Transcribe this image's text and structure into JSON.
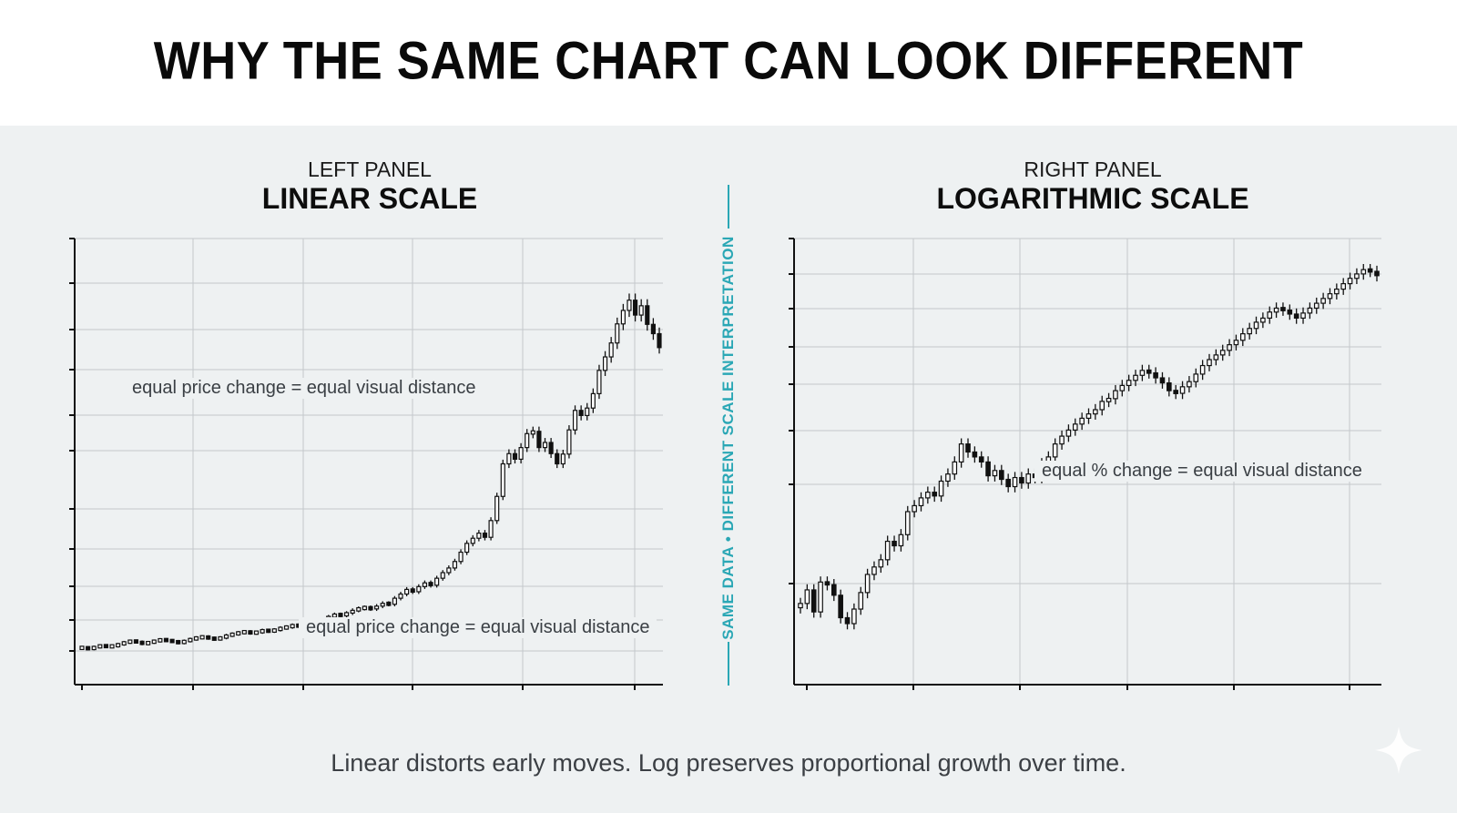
{
  "title": "WHY THE SAME CHART CAN LOOK DIFFERENT",
  "left_panel": {
    "label": "LEFT PANEL",
    "title": "LINEAR SCALE",
    "annotation_upper": "equal price change = equal visual distance",
    "annotation_lower": "equal price change = equal visual distance"
  },
  "right_panel": {
    "label": "RIGHT PANEL",
    "title": "LOGARITHMIC SCALE",
    "annotation": "equal % change = equal visual distance"
  },
  "divider_text": "SAME DATA • DIFFERENT SCALE INTERPRETATION",
  "footer": "Linear distorts early moves. Log preserves proportional growth over time.",
  "colors": {
    "accent": "#2aa7b5",
    "candle": "#111111",
    "grid": "#c4c8cb"
  },
  "chart_data": [
    {
      "type": "candlestick",
      "title": "LINEAR SCALE",
      "scale": "linear",
      "grid": true,
      "note": "unlabeled axes; relative price levels estimated",
      "closes": [
        10.5,
        10.2,
        10.6,
        10.9,
        10.7,
        10.8,
        11.2,
        11.6,
        11.9,
        11.7,
        11.3,
        11.6,
        11.9,
        12.2,
        12.0,
        11.8,
        11.5,
        11.9,
        12.3,
        12.6,
        12.8,
        12.5,
        12.3,
        12.6,
        13.1,
        13.4,
        13.7,
        13.9,
        13.6,
        13.8,
        14.2,
        14.0,
        14.3,
        14.7,
        14.9,
        15.3,
        15.1,
        15.4,
        15.9,
        16.2,
        16.6,
        17.1,
        17.6,
        17.4,
        17.9,
        18.5,
        18.9,
        19.1,
        18.8,
        19.4,
        20.0,
        19.8,
        21.1,
        22.0,
        23.0,
        22.5,
        23.6,
        24.4,
        23.9,
        25.4,
        26.6,
        27.6,
        29.0,
        31.0,
        32.9,
        34.0,
        35.1,
        34.2,
        37.8,
        43.0,
        50.0,
        52.2,
        51.0,
        53.5,
        56.5,
        57.0,
        53.5,
        54.6,
        52.2,
        50.0,
        52.1,
        57.3,
        61.5,
        60.4,
        62.0,
        65.1,
        70.1,
        73.0,
        76.0,
        80.1,
        83.0,
        85.2,
        82.0,
        84.0,
        80.0,
        78.0,
        75.0
      ]
    },
    {
      "type": "candlestick",
      "title": "LOGARITHMIC SCALE",
      "scale": "log",
      "grid": true,
      "note": "unlabeled axes; relative price levels estimated",
      "closes": [
        10.2,
        10.7,
        9.9,
        11.0,
        10.9,
        10.5,
        9.7,
        9.5,
        10.0,
        10.6,
        11.3,
        11.6,
        11.9,
        12.7,
        12.5,
        13.0,
        14.1,
        14.4,
        14.8,
        15.1,
        14.9,
        15.7,
        16.1,
        16.8,
        17.9,
        17.4,
        17.1,
        16.8,
        16.0,
        16.3,
        15.8,
        15.4,
        15.9,
        15.6,
        16.1,
        15.9,
        16.7,
        17.1,
        17.9,
        18.4,
        18.8,
        19.2,
        19.6,
        19.9,
        20.2,
        20.8,
        21.0,
        21.6,
        22.0,
        22.4,
        22.8,
        23.2,
        23.0,
        22.6,
        22.2,
        21.6,
        21.4,
        21.9,
        22.3,
        22.9,
        23.6,
        24.1,
        24.5,
        24.9,
        25.4,
        25.8,
        26.4,
        26.9,
        27.5,
        27.9,
        28.5,
        28.9,
        28.7,
        28.3,
        27.9,
        28.4,
        28.9,
        29.4,
        29.9,
        30.4,
        30.9,
        31.5,
        32.1,
        32.6,
        33.1,
        32.9,
        32.4
      ]
    }
  ]
}
